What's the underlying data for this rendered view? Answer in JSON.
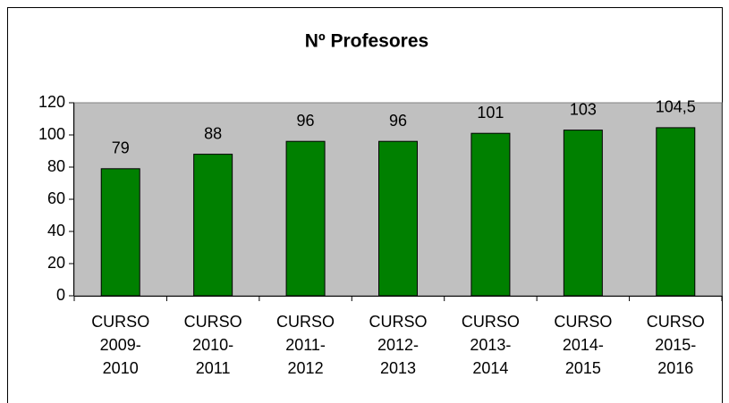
{
  "chart_data": {
    "type": "bar",
    "title": "Nº Profesores",
    "categories": [
      "CURSO 2009-2010",
      "CURSO 2010-2011",
      "CURSO 2011-2012",
      "CURSO 2012-2013",
      "CURSO 2013-2014",
      "CURSO 2014-2015",
      "CURSO 2015-2016"
    ],
    "values": [
      79,
      88,
      96,
      96,
      101,
      103,
      104.5
    ],
    "value_labels": [
      "79",
      "88",
      "96",
      "96",
      "101",
      "103",
      "104,5"
    ],
    "color": "#008000",
    "ylim": [
      0,
      120
    ],
    "yticks": [
      0,
      20,
      40,
      60,
      80,
      100,
      120
    ],
    "grid": false
  }
}
